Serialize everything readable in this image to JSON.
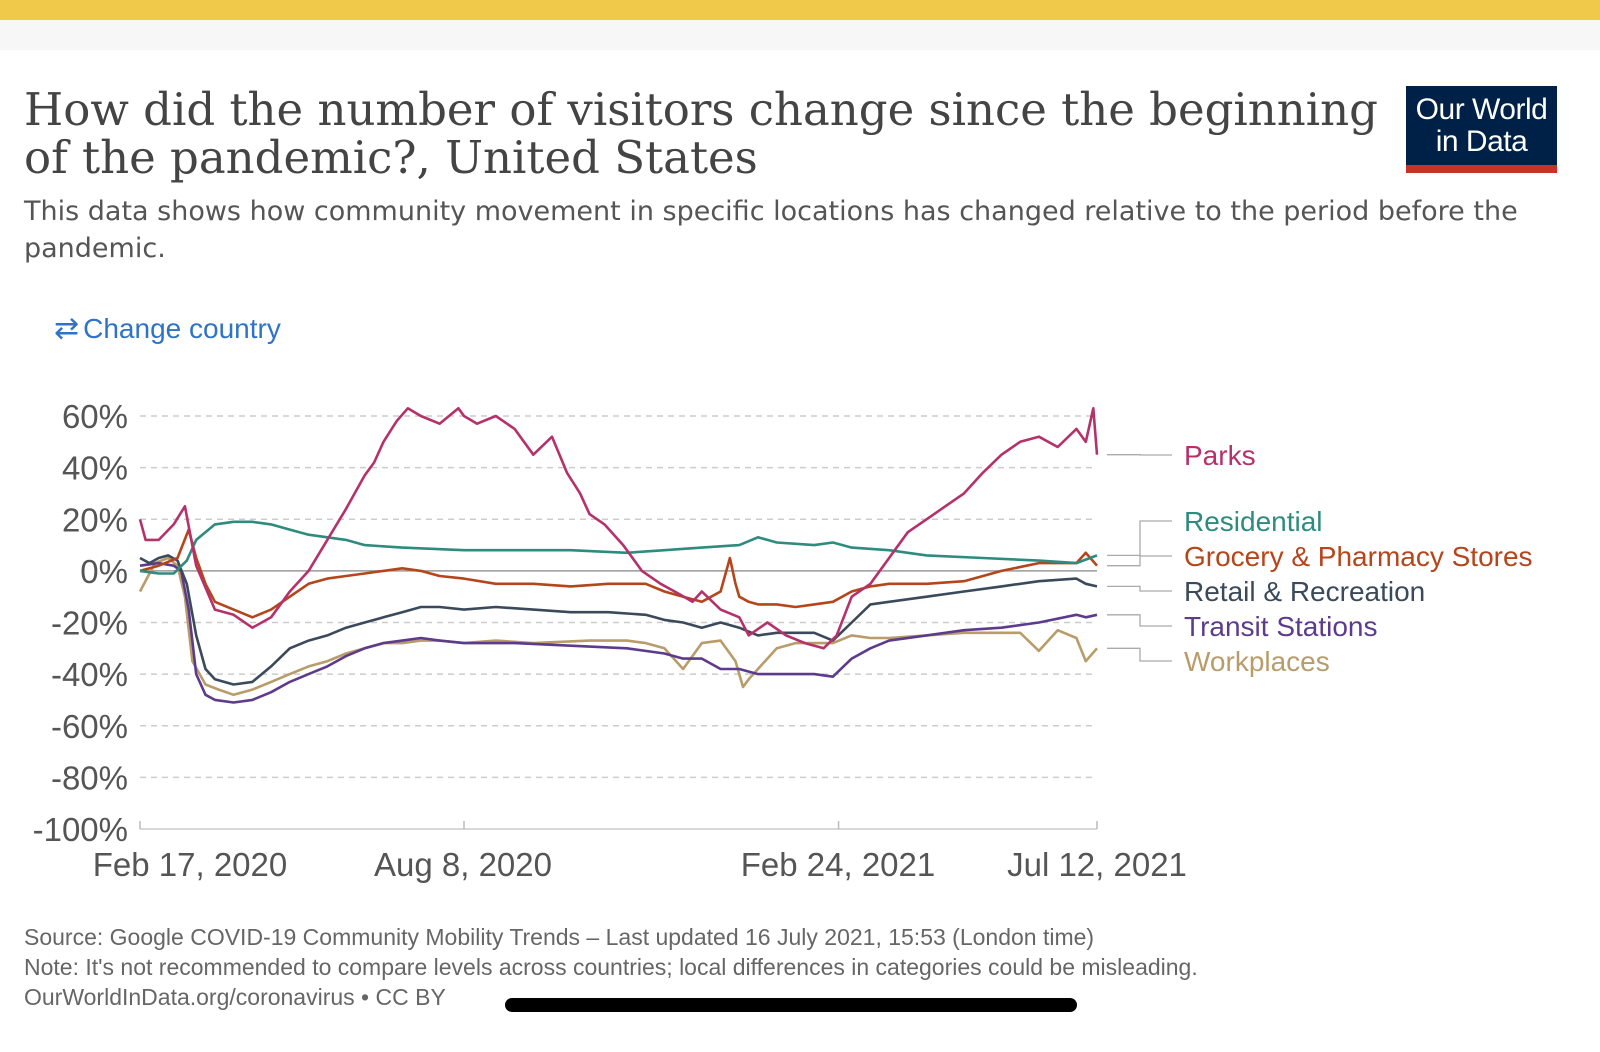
{
  "header": {
    "title": "How did the number of visitors change since the beginning of the pandemic?, United States",
    "subtitle": "This data shows how community movement in specific locations has changed relative to the period before the pandemic.",
    "logo_line1": "Our World",
    "logo_line2": "in Data",
    "logo_colors": {
      "bg": "#002147",
      "accent": "#c8322b"
    }
  },
  "controls": {
    "change_country_icon": "swap-arrows-icon",
    "change_country_label": "Change country",
    "link_color": "#2f73c9"
  },
  "chart_data": {
    "type": "line",
    "title": "How did the number of visitors change since the beginning of the pandemic?, United States",
    "ylim": [
      -100,
      60
    ],
    "yticks": [
      60,
      40,
      20,
      0,
      -20,
      -40,
      -60,
      -80,
      -100
    ],
    "ytick_labels": [
      "60%",
      "40%",
      "20%",
      "0%",
      "-20%",
      "-40%",
      "-60%",
      "-80%",
      "-100%"
    ],
    "xlim": [
      0,
      511
    ],
    "xticks": [
      0,
      173,
      373,
      511
    ],
    "xtick_labels": [
      "Feb 17, 2020",
      "Aug 8, 2020",
      "Feb 24, 2021",
      "Jul 12, 2021"
    ],
    "x_unit": "days since Feb 17, 2020",
    "grid": true,
    "legend": "right, labels at line ends",
    "series": [
      {
        "name": "Parks",
        "color": "#b5316a",
        "x": [
          0,
          3,
          10,
          18,
          24,
          30,
          40,
          50,
          60,
          70,
          80,
          90,
          100,
          110,
          120,
          125,
          130,
          137,
          143,
          150,
          160,
          170,
          173,
          180,
          190,
          200,
          210,
          220,
          228,
          235,
          240,
          248,
          258,
          268,
          278,
          288,
          295,
          300,
          310,
          320,
          325,
          335,
          345,
          355,
          365,
          372,
          380,
          390,
          400,
          410,
          420,
          430,
          440,
          450,
          460,
          470,
          480,
          490,
          500,
          505,
          509,
          511
        ],
        "y": [
          20,
          12,
          12,
          18,
          25,
          2,
          -15,
          -17,
          -22,
          -18,
          -8,
          0,
          12,
          24,
          37,
          42,
          50,
          58,
          63,
          60,
          57,
          63,
          60,
          57,
          60,
          55,
          45,
          52,
          38,
          30,
          22,
          18,
          10,
          0,
          -5,
          -9,
          -12,
          -8,
          -15,
          -18,
          -25,
          -20,
          -25,
          -28,
          -30,
          -25,
          -10,
          -5,
          5,
          15,
          20,
          25,
          30,
          38,
          45,
          50,
          52,
          48,
          55,
          50,
          63,
          45
        ]
      },
      {
        "name": "Residential",
        "color": "#2e8b7d",
        "x": [
          0,
          10,
          18,
          25,
          30,
          40,
          50,
          60,
          70,
          80,
          90,
          100,
          110,
          120,
          140,
          173,
          200,
          230,
          260,
          280,
          300,
          320,
          330,
          340,
          360,
          370,
          380,
          400,
          420,
          450,
          480,
          500,
          511
        ],
        "y": [
          0,
          -1,
          -1,
          4,
          12,
          18,
          19,
          19,
          18,
          16,
          14,
          13,
          12,
          10,
          9,
          8,
          8,
          8,
          7,
          8,
          9,
          10,
          13,
          11,
          10,
          11,
          9,
          8,
          6,
          5,
          4,
          3,
          6
        ]
      },
      {
        "name": "Grocery & Pharmacy Stores",
        "color": "#b5451b",
        "x": [
          0,
          10,
          20,
          26,
          30,
          35,
          40,
          50,
          60,
          70,
          80,
          90,
          100,
          110,
          120,
          130,
          140,
          150,
          160,
          173,
          190,
          210,
          230,
          250,
          270,
          280,
          290,
          300,
          310,
          315,
          318,
          320,
          325,
          330,
          340,
          350,
          360,
          370,
          380,
          390,
          400,
          420,
          440,
          460,
          480,
          500,
          505,
          511
        ],
        "y": [
          0,
          2,
          5,
          16,
          5,
          -5,
          -12,
          -15,
          -18,
          -15,
          -10,
          -5,
          -3,
          -2,
          -1,
          0,
          1,
          0,
          -2,
          -3,
          -5,
          -5,
          -6,
          -5,
          -5,
          -8,
          -10,
          -12,
          -8,
          5,
          -5,
          -10,
          -12,
          -13,
          -13,
          -14,
          -13,
          -12,
          -8,
          -6,
          -5,
          -5,
          -4,
          0,
          3,
          3,
          7,
          2
        ]
      },
      {
        "name": "Retail & Recreation",
        "color": "#3b4a5a",
        "x": [
          0,
          5,
          10,
          15,
          20,
          25,
          30,
          35,
          40,
          50,
          60,
          70,
          80,
          90,
          100,
          110,
          120,
          130,
          140,
          150,
          160,
          173,
          190,
          210,
          230,
          250,
          270,
          280,
          290,
          300,
          310,
          320,
          330,
          340,
          350,
          360,
          370,
          380,
          390,
          400,
          420,
          440,
          460,
          480,
          500,
          505,
          511
        ],
        "y": [
          5,
          3,
          5,
          6,
          4,
          -5,
          -25,
          -38,
          -42,
          -44,
          -43,
          -37,
          -30,
          -27,
          -25,
          -22,
          -20,
          -18,
          -16,
          -14,
          -14,
          -15,
          -14,
          -15,
          -16,
          -16,
          -17,
          -19,
          -20,
          -22,
          -20,
          -22,
          -25,
          -24,
          -24,
          -24,
          -27,
          -20,
          -13,
          -12,
          -10,
          -8,
          -6,
          -4,
          -3,
          -5,
          -6
        ]
      },
      {
        "name": "Transit Stations",
        "color": "#5d3b8c",
        "x": [
          0,
          10,
          18,
          22,
          26,
          30,
          35,
          40,
          50,
          60,
          70,
          80,
          90,
          100,
          110,
          120,
          130,
          140,
          150,
          160,
          173,
          200,
          230,
          260,
          280,
          290,
          300,
          310,
          320,
          330,
          340,
          360,
          370,
          380,
          390,
          400,
          420,
          440,
          460,
          480,
          500,
          505,
          511
        ],
        "y": [
          2,
          3,
          2,
          0,
          -15,
          -40,
          -48,
          -50,
          -51,
          -50,
          -47,
          -43,
          -40,
          -37,
          -33,
          -30,
          -28,
          -27,
          -26,
          -27,
          -28,
          -28,
          -29,
          -30,
          -32,
          -34,
          -34,
          -38,
          -38,
          -40,
          -40,
          -40,
          -41,
          -34,
          -30,
          -27,
          -25,
          -23,
          -22,
          -20,
          -17,
          -18,
          -17
        ]
      },
      {
        "name": "Workplaces",
        "color": "#b89c6a",
        "x": [
          0,
          8,
          15,
          20,
          24,
          28,
          35,
          42,
          50,
          60,
          70,
          80,
          90,
          100,
          110,
          120,
          130,
          140,
          150,
          160,
          173,
          190,
          210,
          240,
          260,
          270,
          280,
          290,
          300,
          310,
          318,
          322,
          325,
          330,
          340,
          350,
          360,
          370,
          380,
          390,
          400,
          420,
          440,
          460,
          470,
          480,
          490,
          500,
          505,
          511
        ],
        "y": [
          -8,
          3,
          5,
          2,
          -10,
          -35,
          -44,
          -46,
          -48,
          -46,
          -43,
          -40,
          -37,
          -35,
          -32,
          -30,
          -28,
          -28,
          -27,
          -27,
          -28,
          -27,
          -28,
          -27,
          -27,
          -28,
          -30,
          -38,
          -28,
          -27,
          -35,
          -45,
          -42,
          -38,
          -30,
          -28,
          -28,
          -28,
          -25,
          -26,
          -26,
          -25,
          -24,
          -24,
          -24,
          -31,
          -23,
          -26,
          -35,
          -30
        ]
      }
    ],
    "series_label_order": [
      "Parks",
      "Residential",
      "Grocery & Pharmacy Stores",
      "Retail & Recreation",
      "Transit Stations",
      "Workplaces"
    ]
  },
  "footer": {
    "source": "Source: Google COVID-19 Community Mobility Trends – Last updated 16 July 2021, 15:53 (London time)",
    "note": "Note: It's not recommended to compare levels across countries; local differences in categories could be misleading.",
    "link": "OurWorldInData.org/coronavirus • CC BY"
  }
}
